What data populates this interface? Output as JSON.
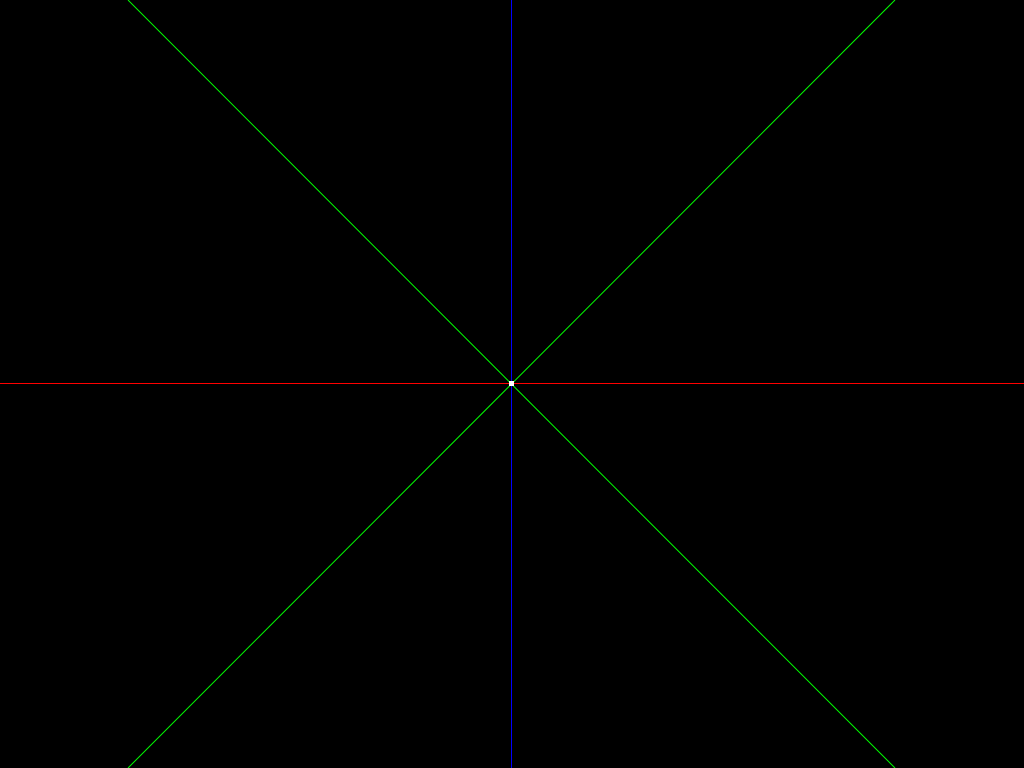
{
  "scene": {
    "background_color": "#000000",
    "horizontal_axis_color": "#ff0000",
    "vertical_axis_color": "#0000ff",
    "diagonal_color": "#00ff00",
    "center_marker_color": "#ffffff"
  }
}
